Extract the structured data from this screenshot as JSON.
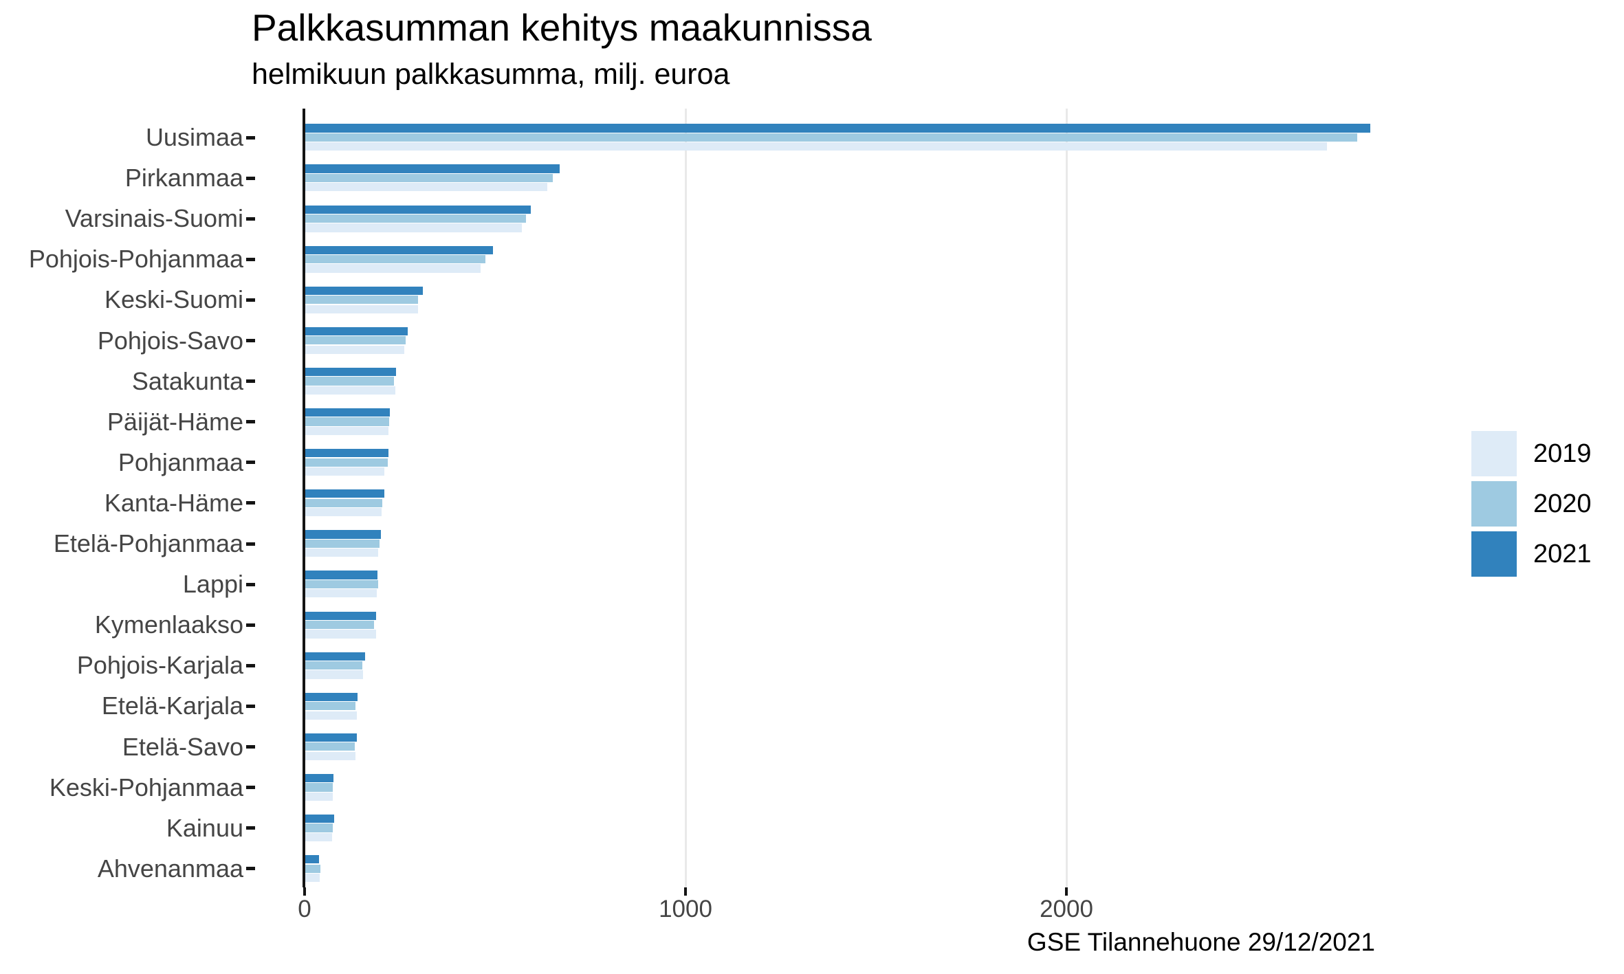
{
  "title": "Palkkasumman kehitys maakunnissa",
  "subtitle": "helmikuun palkkasumma, milj. euroa",
  "caption": "GSE Tilannehuone 29/12/2021",
  "legend": {
    "position": "right",
    "items": [
      {
        "label": "2019",
        "color": "#DEEBF7"
      },
      {
        "label": "2020",
        "color": "#9ECAE1"
      },
      {
        "label": "2021",
        "color": "#3182BD"
      }
    ]
  },
  "colors": {
    "bar_2019": "#DEEBF7",
    "bar_2020": "#9ECAE1",
    "bar_2021": "#3182BD",
    "axis_text": "#454545",
    "axis_line": "#141414",
    "gridline": "#e9e9e9",
    "background": "#ffffff"
  },
  "chart_data": {
    "type": "bar",
    "orientation": "horizontal",
    "title": "Palkkasumman kehitys maakunnissa",
    "subtitle": "helmikuun palkkasumma, milj. euroa",
    "caption": "GSE Tilannehuone 29/12/2021",
    "unit": "milj. euroa",
    "categories": [
      "Uusimaa",
      "Pirkanmaa",
      "Varsinais-Suomi",
      "Pohjois-Pohjanmaa",
      "Keski-Suomi",
      "Pohjois-Savo",
      "Satakunta",
      "Päijät-Häme",
      "Pohjanmaa",
      "Kanta-Häme",
      "Etelä-Pohjanmaa",
      "Lappi",
      "Kymenlaakso",
      "Pohjois-Karjala",
      "Etelä-Karjala",
      "Etelä-Savo",
      "Keski-Pohjanmaa",
      "Kainuu",
      "Ahvenanmaa"
    ],
    "series": [
      {
        "name": "2019",
        "color": "#DEEBF7",
        "values": [
          2683,
          635,
          569,
          460,
          296,
          260,
          237,
          218,
          208,
          200,
          191,
          188,
          186,
          152,
          135,
          132,
          72,
          70,
          38
        ]
      },
      {
        "name": "2020",
        "color": "#9ECAE1",
        "values": [
          2762,
          649,
          580,
          473,
          296,
          264,
          233,
          220,
          217,
          203,
          195,
          191,
          180,
          150,
          132,
          130,
          72,
          72,
          40
        ]
      },
      {
        "name": "2021",
        "color": "#3182BD",
        "values": [
          2796,
          668,
          592,
          492,
          309,
          269,
          238,
          222,
          218,
          208,
          199,
          189,
          186,
          157,
          137,
          135,
          74,
          75,
          37
        ]
      }
    ],
    "bar_order_top_to_bottom": [
      "2021",
      "2020",
      "2019"
    ],
    "xlim": [
      0,
      3000
    ],
    "x_ticks": [
      0,
      1000,
      2000
    ],
    "grid": "major-vertical-only",
    "legend_position": "right"
  }
}
